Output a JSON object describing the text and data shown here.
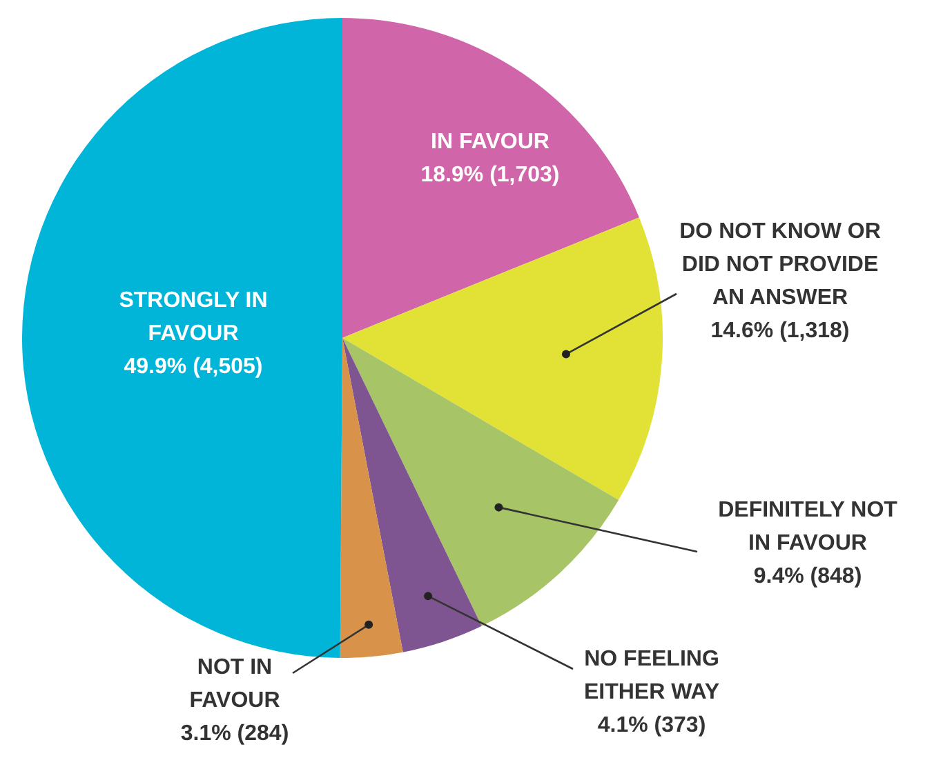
{
  "chart_data": {
    "type": "pie",
    "categories": [
      "IN FAVOUR",
      "DO NOT KNOW OR DID NOT PROVIDE AN ANSWER",
      "DEFINITELY NOT IN FAVOUR",
      "NO FEELING EITHER WAY",
      "NOT IN FAVOUR",
      "STRONGLY IN FAVOUR"
    ],
    "values": [
      1703,
      1318,
      848,
      373,
      284,
      4505
    ],
    "value_labels": [
      "18.9% (1,703)",
      "14.6% (1,318)",
      "9.4% (848)",
      "4.1% (373)",
      "3.1% (284)",
      "49.9% (4,505)"
    ],
    "colors": [
      "#d165a9",
      "#e2e236",
      "#a7c466",
      "#7e5591",
      "#d8924a",
      "#00b5d8"
    ],
    "legend": false
  }
}
